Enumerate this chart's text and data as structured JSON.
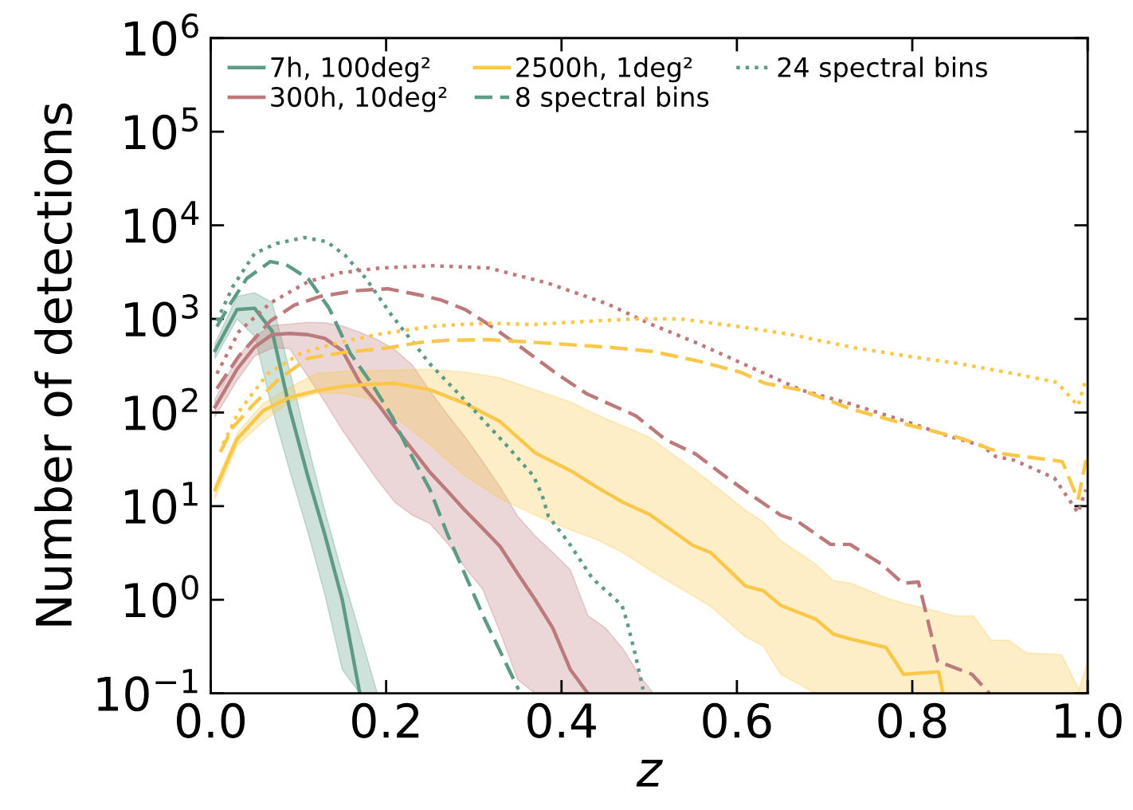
{
  "chart_data": {
    "type": "line",
    "xlabel": "z",
    "ylabel": "Number of detections",
    "log": "y",
    "xlim": [
      0,
      1
    ],
    "ylim": [
      0.1,
      1000000
    ],
    "xticks": [
      {
        "value": 0,
        "label": "0.0"
      },
      0.2,
      0.4,
      0.6,
      0.8,
      {
        "value": 1,
        "label": "1.0"
      }
    ],
    "yticks": [
      {
        "value": 0.1,
        "label": "10$^{−1}$"
      },
      {
        "value": 1,
        "label": "10$^{0}$"
      },
      {
        "value": 10,
        "label": "10$^{1}$"
      },
      {
        "value": 100,
        "label": "10$^{2}$"
      },
      {
        "value": 1000,
        "label": "10$^{3}$"
      },
      {
        "value": 10000,
        "label": "10$^{4}$"
      },
      {
        "value": 100000,
        "label": "10$^{5}$"
      },
      {
        "value": 1000000,
        "label": "10$^{6}$"
      }
    ],
    "grid": false,
    "legend": "top",
    "marker": "none",
    "series": [
      {
        "name": "7h, 100deg²",
        "color": "#5e9b86",
        "line_style": "solid",
        "x": [
          0.005,
          0.03,
          0.05,
          0.07,
          0.09,
          0.11,
          0.13,
          0.15,
          0.17,
          0.19
        ],
        "values": [
          460,
          1260,
          1300,
          740,
          110,
          22,
          5,
          1.0,
          0.1,
          null
        ],
        "upper": [
          550,
          1740,
          1900,
          1500,
          280,
          48,
          9,
          1.9,
          0.44,
          0.1
        ],
        "lower": [
          380,
          1000,
          650,
          110,
          24,
          5.6,
          1.15,
          0.18,
          0.1,
          0.1
        ]
      },
      {
        "name": "300h, 10deg²",
        "color": "#bc7a7c",
        "line_style": "solid",
        "x": [
          0.005,
          0.03,
          0.05,
          0.07,
          0.09,
          0.11,
          0.13,
          0.15,
          0.17,
          0.19,
          0.21,
          0.23,
          0.25,
          0.27,
          0.29,
          0.31,
          0.33,
          0.35,
          0.37,
          0.39,
          0.41,
          0.43,
          0.45,
          0.47,
          0.49,
          0.505
        ],
        "values": [
          115,
          290,
          500,
          680,
          700,
          680,
          620,
          460,
          210,
          125,
          70,
          40,
          23,
          14.5,
          9,
          5.8,
          3.7,
          1.9,
          1.0,
          0.5,
          0.18,
          0.1,
          null,
          null,
          null,
          null
        ],
        "upper": [
          140,
          380,
          650,
          850,
          880,
          920,
          910,
          840,
          720,
          600,
          470,
          320,
          170,
          95,
          55,
          30,
          16,
          7.8,
          4.8,
          3.2,
          2.1,
          0.68,
          0.5,
          0.3,
          0.15,
          0.1
        ],
        "lower": [
          90,
          220,
          400,
          490,
          480,
          250,
          130,
          65,
          35,
          19,
          11,
          8,
          6.5,
          4,
          2.2,
          1.3,
          0.45,
          0.14,
          0.1,
          0.1,
          0.1,
          0.1,
          0.1,
          0.1,
          0.1,
          0.1
        ]
      },
      {
        "name": "2500h, 1deg²",
        "color": "#fac748",
        "line_style": "solid",
        "x": [
          0.005,
          0.03,
          0.06,
          0.09,
          0.12,
          0.15,
          0.18,
          0.21,
          0.25,
          0.29,
          0.33,
          0.37,
          0.41,
          0.44,
          0.47,
          0.5,
          0.55,
          0.57,
          0.61,
          0.63,
          0.65,
          0.69,
          0.71,
          0.73,
          0.77,
          0.79,
          0.83,
          0.835,
          0.85,
          0.87,
          0.89,
          0.91,
          0.93,
          0.97,
          0.99,
          1.0
        ],
        "values": [
          15,
          52,
          105,
          145,
          170,
          190,
          200,
          205,
          175,
          125,
          80,
          37,
          24,
          16,
          11,
          8.2,
          3.8,
          3.2,
          1.4,
          1.25,
          0.87,
          0.62,
          0.43,
          0.38,
          0.31,
          0.16,
          0.17,
          0.1,
          null,
          null,
          null,
          null,
          null,
          null,
          null,
          null
        ],
        "upper": [
          17,
          60,
          125,
          185,
          260,
          275,
          280,
          285,
          290,
          270,
          235,
          175,
          130,
          95,
          72,
          55,
          25,
          18,
          9,
          6.8,
          4.3,
          2.4,
          1.6,
          1.5,
          1.05,
          0.92,
          0.75,
          0.72,
          0.67,
          0.67,
          0.37,
          0.37,
          0.27,
          0.26,
          0.11,
          0.22
        ],
        "lower": [
          12,
          44,
          80,
          130,
          160,
          160,
          140,
          90,
          45,
          21,
          12,
          8,
          5.6,
          4.4,
          3.2,
          2.1,
          1.1,
          0.85,
          0.4,
          0.32,
          0.16,
          0.1,
          0.1,
          0.1,
          0.1,
          0.1,
          0.1,
          0.1,
          0.1,
          0.1,
          0.1,
          0.1,
          0.1,
          0.1,
          0.1,
          0.1
        ]
      },
      {
        "name": "8 spectral bins",
        "color": "#5e9b86",
        "line_style": "dashed",
        "x": [
          0.007,
          0.023,
          0.041,
          0.068,
          0.086,
          0.111,
          0.135,
          0.159,
          0.184,
          0.207,
          0.223,
          0.25,
          0.27,
          0.311,
          0.351
        ],
        "values": [
          830,
          1480,
          2700,
          4100,
          3800,
          2700,
          1300,
          430,
          200,
          90,
          44,
          15,
          5,
          0.66,
          0.11
        ]
      },
      {
        "name": "24 spectral bins",
        "color": "#5e9b86",
        "line_style": "dotted",
        "x": [
          0.007,
          0.025,
          0.05,
          0.075,
          0.107,
          0.132,
          0.153,
          0.177,
          0.207,
          0.238,
          0.25,
          0.294,
          0.337,
          0.368,
          0.378,
          0.385,
          0.408,
          0.435,
          0.469,
          0.475,
          0.485,
          0.493
        ],
        "values": [
          950,
          2200,
          5000,
          6400,
          7400,
          6700,
          4800,
          2700,
          1070,
          460,
          330,
          123,
          45,
          21,
          13,
          7.8,
          4.1,
          1.7,
          0.87,
          0.57,
          0.24,
          0.11
        ]
      },
      {
        "color": "#bc7a7c",
        "line_style": "dashed",
        "x": [
          0.007,
          0.032,
          0.068,
          0.095,
          0.125,
          0.165,
          0.202,
          0.238,
          0.262,
          0.29,
          0.317,
          0.351,
          0.392,
          0.428,
          0.485,
          0.519,
          0.553,
          0.586,
          0.614,
          0.65,
          0.668,
          0.707,
          0.729,
          0.765,
          0.789,
          0.807,
          0.829,
          0.868,
          0.888
        ],
        "values": [
          180,
          400,
          950,
          1400,
          1740,
          2000,
          2100,
          1800,
          1600,
          1260,
          870,
          520,
          270,
          160,
          92,
          51,
          36,
          21,
          13.6,
          8,
          7,
          3.9,
          3.9,
          2.4,
          1.5,
          1.55,
          0.22,
          0.16,
          0.1
        ]
      },
      {
        "color": "#bc7a7c",
        "line_style": "dotted",
        "x": [
          0.007,
          0.032,
          0.068,
          0.111,
          0.147,
          0.193,
          0.253,
          0.317,
          0.385,
          0.452,
          0.503,
          0.553,
          0.614,
          0.674,
          0.729,
          0.795,
          0.841,
          0.88,
          0.895,
          0.916,
          0.962,
          0.989,
          0.998
        ],
        "values": [
          260,
          730,
          1480,
          2500,
          3100,
          3500,
          3700,
          3500,
          2400,
          1450,
          870,
          560,
          310,
          173,
          124,
          79,
          56,
          44,
          34,
          31,
          20,
          8.5,
          15
        ]
      },
      {
        "color": "#fac748",
        "line_style": "dashed",
        "x": [
          0.011,
          0.025,
          0.047,
          0.077,
          0.111,
          0.153,
          0.202,
          0.238,
          0.268,
          0.317,
          0.385,
          0.452,
          0.503,
          0.553,
          0.604,
          0.632,
          0.674,
          0.729,
          0.795,
          0.856,
          0.905,
          0.971,
          0.989,
          0.998
        ],
        "values": [
          38,
          69,
          117,
          225,
          380,
          440,
          490,
          560,
          590,
          600,
          550,
          500,
          450,
          360,
          270,
          205,
          173,
          110,
          74,
          53,
          36,
          30,
          11.7,
          31
        ]
      },
      {
        "color": "#fac748",
        "line_style": "dotted",
        "x": [
          0.014,
          0.032,
          0.065,
          0.105,
          0.147,
          0.189,
          0.232,
          0.262,
          0.317,
          0.368,
          0.418,
          0.485,
          0.536,
          0.614,
          0.662,
          0.735,
          0.795,
          0.856,
          0.916,
          0.965,
          0.989,
          0.998
        ],
        "values": [
          46,
          102,
          260,
          440,
          560,
          680,
          780,
          850,
          900,
          870,
          930,
          1000,
          1000,
          800,
          680,
          490,
          400,
          330,
          260,
          210,
          118,
          225
        ]
      }
    ]
  }
}
